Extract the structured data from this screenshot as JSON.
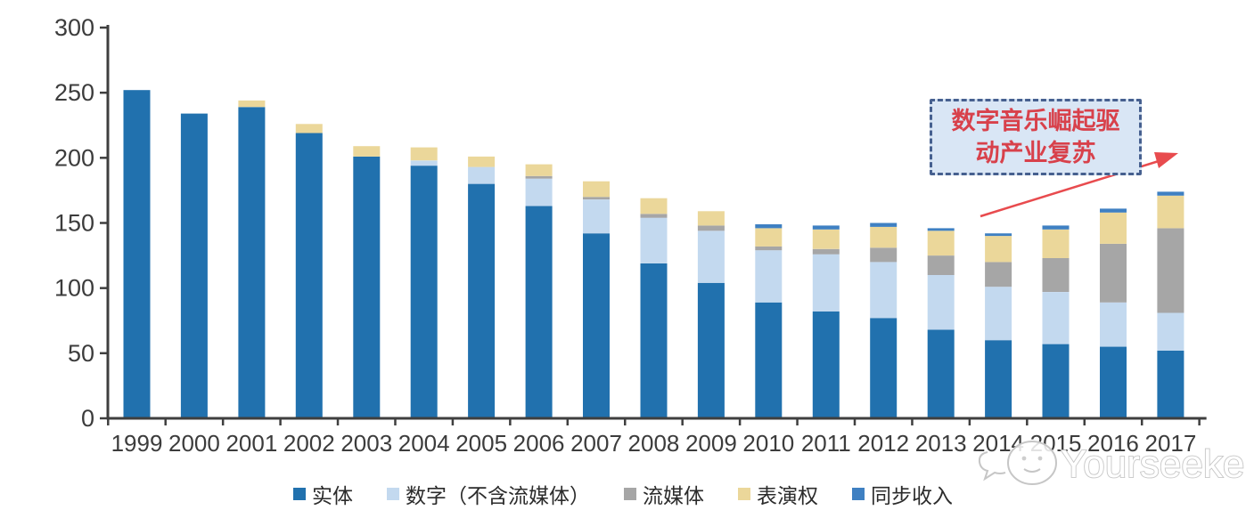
{
  "chart_data": {
    "type": "bar",
    "variant": "stacked",
    "title": "",
    "xlabel": "",
    "ylabel": "",
    "x": [
      "1999",
      "2000",
      "2001",
      "2002",
      "2003",
      "2004",
      "2005",
      "2006",
      "2007",
      "2008",
      "2009",
      "2010",
      "2011",
      "2012",
      "2013",
      "2014",
      "2015",
      "2016",
      "2017"
    ],
    "series": [
      {
        "name": "实体",
        "color": "#2171ae",
        "values": [
          252,
          234,
          239,
          219,
          201,
          194,
          180,
          163,
          142,
          119,
          104,
          89,
          82,
          77,
          68,
          60,
          57,
          55,
          52
        ]
      },
      {
        "name": "数字（不含流媒体）",
        "color": "#c3d9ef",
        "values": [
          0,
          0,
          0,
          0,
          0,
          4,
          13,
          21,
          26,
          35,
          40,
          40,
          44,
          43,
          42,
          41,
          40,
          34,
          29
        ]
      },
      {
        "name": "流媒体",
        "color": "#a6a6a6",
        "values": [
          0,
          0,
          0,
          0,
          0,
          0,
          0,
          2,
          2,
          3,
          4,
          3,
          4,
          11,
          15,
          19,
          26,
          45,
          65
        ]
      },
      {
        "name": "表演权",
        "color": "#ebd79a",
        "values": [
          0,
          0,
          5,
          7,
          8,
          10,
          8,
          9,
          12,
          12,
          11,
          14,
          15,
          16,
          19,
          20,
          22,
          24,
          25
        ]
      },
      {
        "name": "同步收入",
        "color": "#3f80c2",
        "values": [
          0,
          0,
          0,
          0,
          0,
          0,
          0,
          0,
          0,
          0,
          0,
          3,
          3,
          3,
          2,
          2,
          3,
          3,
          3
        ]
      }
    ],
    "y_ticks": [
      0,
      50,
      100,
      150,
      200,
      250,
      300
    ],
    "ylim": [
      0,
      300
    ],
    "grid": false,
    "legend_position": "bottom"
  },
  "annotation": {
    "line1": "数字音乐崛起驱",
    "line2": "动产业复苏"
  },
  "watermark": {
    "text": "Yourseeker"
  },
  "colors": {
    "axis": "#3f3f3f",
    "annotation_border": "#46608f",
    "annotation_fill": "#d9e6f5",
    "annotation_text": "#d8414b",
    "arrow": "#e84b4e",
    "watermark_stroke": "#c6c6c6"
  }
}
